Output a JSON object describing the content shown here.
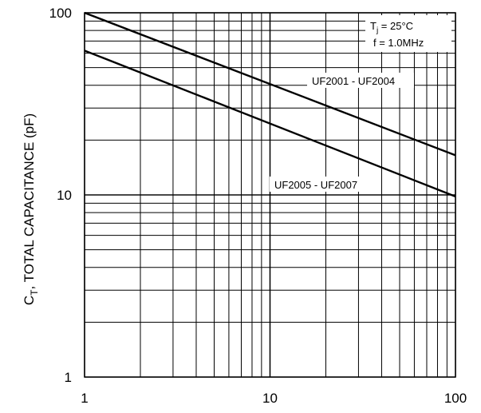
{
  "chart_data": {
    "type": "line",
    "title": "",
    "xlabel": "",
    "ylabel": "C_T, TOTAL CAPACITANCE (pF)",
    "ylabel_main": "C",
    "ylabel_sub": "T",
    "ylabel_rest": ", TOTAL CAPACITANCE (pF)",
    "x_scale": "log",
    "y_scale": "log",
    "xlim": [
      1,
      100
    ],
    "ylim": [
      1,
      100
    ],
    "x_ticks": [
      "1",
      "10",
      "100"
    ],
    "y_ticks": [
      "1",
      "10",
      "100"
    ],
    "grid": true,
    "series": [
      {
        "name": "UF2001 - UF2004",
        "x": [
          1,
          100
        ],
        "y": [
          100,
          16.5
        ]
      },
      {
        "name": "UF2005 - UF2007",
        "x": [
          1,
          100
        ],
        "y": [
          62,
          9.8
        ]
      }
    ],
    "annotations": {
      "tj_main": "T",
      "tj_sub": "j",
      "tj_rest": " = 25°C",
      "freq": "f = 1.0MHz"
    }
  }
}
